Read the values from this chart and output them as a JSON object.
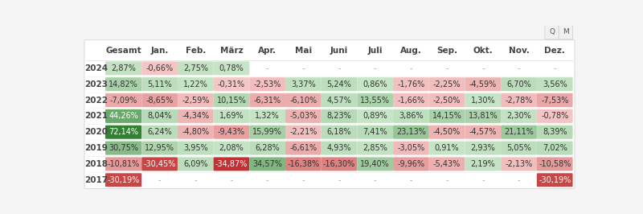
{
  "columns": [
    "Gesamt",
    "Jan.",
    "Feb.",
    "März",
    "Apr.",
    "Mai",
    "Juni",
    "Juli",
    "Aug.",
    "Sep.",
    "Okt.",
    "Nov.",
    "Dez."
  ],
  "rows": [
    {
      "year": "2024",
      "values": [
        2.87,
        -0.66,
        2.75,
        0.78,
        null,
        null,
        null,
        null,
        null,
        null,
        null,
        null,
        null
      ]
    },
    {
      "year": "2023",
      "values": [
        14.82,
        5.11,
        1.22,
        -0.31,
        -2.53,
        3.37,
        5.24,
        0.86,
        -1.76,
        -2.25,
        -4.59,
        6.7,
        3.56
      ]
    },
    {
      "year": "2022",
      "values": [
        -7.09,
        -8.65,
        -2.59,
        10.15,
        -6.31,
        -6.1,
        4.57,
        13.55,
        -1.66,
        -2.5,
        1.3,
        -2.78,
        -7.53
      ]
    },
    {
      "year": "2021",
      "values": [
        44.26,
        8.04,
        -4.34,
        1.69,
        1.32,
        -5.03,
        8.23,
        0.89,
        3.86,
        14.15,
        13.81,
        2.3,
        -0.78
      ]
    },
    {
      "year": "2020",
      "values": [
        72.14,
        6.24,
        -4.8,
        -9.43,
        15.99,
        -2.21,
        6.18,
        7.41,
        23.13,
        -4.5,
        -4.57,
        21.11,
        8.39
      ]
    },
    {
      "year": "2019",
      "values": [
        30.75,
        12.95,
        3.95,
        2.08,
        6.28,
        -6.61,
        4.93,
        2.85,
        -3.05,
        0.91,
        2.93,
        5.05,
        7.02
      ]
    },
    {
      "year": "2018",
      "values": [
        -10.81,
        -30.45,
        6.09,
        -34.87,
        34.57,
        -16.38,
        -16.3,
        19.4,
        -9.96,
        -5.43,
        2.19,
        -2.13,
        -10.58
      ]
    },
    {
      "year": "2017",
      "values": [
        -30.19,
        null,
        null,
        null,
        null,
        null,
        null,
        null,
        null,
        null,
        null,
        null,
        -30.19
      ]
    }
  ],
  "display_texts": {
    "2024": [
      "2,87%",
      "-0,66%",
      "2,75%",
      "0,78%",
      "-",
      "-",
      "-",
      "-",
      "-",
      "-",
      "-",
      "-",
      "-"
    ],
    "2023": [
      "14,82%",
      "5,11%",
      "1,22%",
      "-0,31%",
      "-2,53%",
      "3,37%",
      "5,24%",
      "0,86%",
      "-1,76%",
      "-2,25%",
      "-4,59%",
      "6,70%",
      "3,56%"
    ],
    "2022": [
      "-7,09%",
      "-8,65%",
      "-2,59%",
      "10,15%",
      "-6,31%",
      "-6,10%",
      "4,57%",
      "13,55%",
      "-1,66%",
      "-2,50%",
      "1,30%",
      "-2,78%",
      "-7,53%"
    ],
    "2021": [
      "44,26%",
      "8,04%",
      "-4,34%",
      "1,69%",
      "1,32%",
      "-5,03%",
      "8,23%",
      "0,89%",
      "3,86%",
      "14,15%",
      "13,81%",
      "2,30%",
      "-0,78%"
    ],
    "2020": [
      "72,14%",
      "6,24%",
      "-4,80%",
      "-9,43%",
      "15,99%",
      "-2,21%",
      "6,18%",
      "7,41%",
      "23,13%",
      "-4,50%",
      "-4,57%",
      "21,11%",
      "8,39%"
    ],
    "2019": [
      "30,75%",
      "12,95%",
      "3,95%",
      "2,08%",
      "6,28%",
      "-6,61%",
      "4,93%",
      "2,85%",
      "-3,05%",
      "0,91%",
      "2,93%",
      "5,05%",
      "7,02%"
    ],
    "2018": [
      "-10,81%",
      "-30,45%",
      "6,09%",
      "-34,87%",
      "34,57%",
      "-16,38%",
      "-16,30%",
      "19,40%",
      "-9,96%",
      "-5,43%",
      "2,19%",
      "-2,13%",
      "-10,58%"
    ],
    "2017": [
      "-30,19%",
      "-",
      "-",
      "-",
      "-",
      "-",
      "-",
      "-",
      "-",
      "-",
      "-",
      "-",
      "-30,19%"
    ]
  },
  "bg_color": "#f5f5f5",
  "table_bg": "#ffffff",
  "header_color": "#444444",
  "year_color": "#444444",
  "cell_text_normal": "#333333",
  "cell_text_white": "#ffffff",
  "null_text_color": "#aaaaaa",
  "font_size_header": 7.5,
  "font_size_data": 7.0,
  "font_size_year": 7.5
}
